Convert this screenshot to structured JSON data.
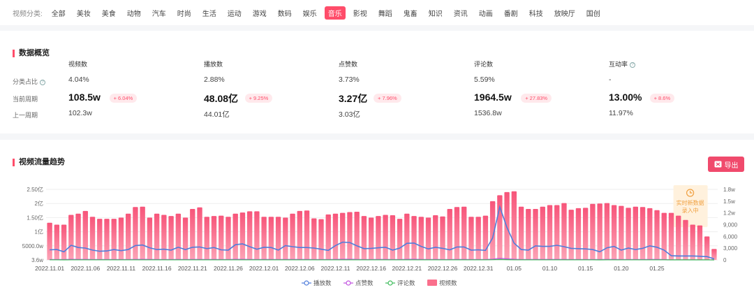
{
  "filter": {
    "label": "视频分类:",
    "categories": [
      "全部",
      "美妆",
      "美食",
      "动物",
      "汽车",
      "时尚",
      "生活",
      "运动",
      "游戏",
      "数码",
      "娱乐",
      "音乐",
      "影视",
      "舞蹈",
      "鬼畜",
      "知识",
      "资讯",
      "动画",
      "番剧",
      "科技",
      "放映厅",
      "国创"
    ],
    "active": "音乐"
  },
  "overview": {
    "title": "数据概览",
    "row_labels": {
      "share": "分类占比",
      "current": "当前周期",
      "previous": "上一周期"
    },
    "metrics": [
      {
        "name": "视频数",
        "share": "4.04%",
        "current": "108.5w",
        "change": "+ 6.04%",
        "previous": "102.3w"
      },
      {
        "name": "播放数",
        "share": "2.88%",
        "current": "48.08亿",
        "change": "+ 9.25%",
        "previous": "44.01亿"
      },
      {
        "name": "点赞数",
        "share": "3.73%",
        "current": "3.27亿",
        "change": "+ 7.96%",
        "previous": "3.03亿"
      },
      {
        "name": "评论数",
        "share": "5.59%",
        "current": "1964.5w",
        "change": "+ 27.83%",
        "previous": "1536.8w"
      },
      {
        "name": "互动率",
        "share": "-",
        "current": "13.00%",
        "change": "+ 8.6%",
        "previous": "11.97%"
      }
    ]
  },
  "trend": {
    "title": "视频流量趋势",
    "export_label": "导出",
    "realtime_note": [
      "实时新数据",
      "录入中"
    ]
  },
  "colors": {
    "accent": "#ff4d6a",
    "bar": "#fa6f8c",
    "play": "#4f7ddb",
    "like": "#c050e0",
    "comment": "#3dbb5a"
  },
  "chart_data": {
    "type": "bar",
    "x_tick_labels": [
      "2022.11.01",
      "2022.11.06",
      "2022.11.11",
      "2022.11.16",
      "2022.11.21",
      "2022.11.26",
      "2022.12.01",
      "2022.12.06",
      "2022.12.11",
      "2022.12.16",
      "2022.12.21",
      "2022.12.26",
      "2022.12.31",
      "01.05",
      "01.10",
      "01.15",
      "01.20",
      "01.25"
    ],
    "y_left_ticks": [
      "2.50亿",
      "2亿",
      "1.50亿",
      "1亿",
      "5000.0w",
      "3.6w"
    ],
    "y_right_ticks": [
      "1.8w",
      "1.5w",
      "1.2w",
      "9,000",
      "6,000",
      "3,000",
      "0"
    ],
    "y_left_max": 250000000,
    "y_right_max": 18000,
    "legend": [
      "播放数",
      "点赞数",
      "评论数",
      "视频数"
    ],
    "series": [
      {
        "name": "视频数",
        "axis": "right",
        "values": [
          9500,
          9000,
          9000,
          11500,
          11800,
          12500,
          11000,
          10500,
          10500,
          10500,
          10800,
          11800,
          13500,
          13600,
          10800,
          11800,
          11500,
          11200,
          11800,
          10800,
          13000,
          13400,
          11000,
          11200,
          11300,
          11000,
          11800,
          12100,
          12400,
          12400,
          11000,
          11000,
          11000,
          10800,
          11800,
          12500,
          12600,
          10600,
          10400,
          11600,
          11800,
          12000,
          12200,
          12300,
          11200,
          10800,
          11200,
          11500,
          11400,
          10500,
          11800,
          11200,
          11000,
          10800,
          11400,
          11100,
          13000,
          13500,
          13600,
          11000,
          11000,
          11300,
          15000,
          16500,
          17300,
          17500,
          13600,
          13000,
          13000,
          13600,
          14000,
          14000,
          14500,
          12800,
          13200,
          13300,
          14300,
          14400,
          14500,
          14000,
          13800,
          13300,
          13600,
          13500,
          13200,
          12700,
          12000,
          12000,
          11300,
          10200,
          9000,
          8800,
          6000,
          2800
        ]
      },
      {
        "name": "播放数",
        "axis": "left",
        "values": [
          36000000,
          37000000,
          29000000,
          52000000,
          44000000,
          42000000,
          35000000,
          31000000,
          32000000,
          37000000,
          33000000,
          37000000,
          51000000,
          53000000,
          43000000,
          37000000,
          38000000,
          35000000,
          45000000,
          37000000,
          45000000,
          46000000,
          40000000,
          44000000,
          36000000,
          35000000,
          54000000,
          57000000,
          47000000,
          38000000,
          45000000,
          44000000,
          35000000,
          51000000,
          47000000,
          44000000,
          44000000,
          42000000,
          38000000,
          34000000,
          51000000,
          63000000,
          62000000,
          50000000,
          40000000,
          41000000,
          43000000,
          45000000,
          35000000,
          42000000,
          59000000,
          60000000,
          48000000,
          39000000,
          45000000,
          41000000,
          36000000,
          46000000,
          46000000,
          35000000,
          36000000,
          34000000,
          78000000,
          188000000,
          115000000,
          60000000,
          37000000,
          35000000,
          50000000,
          48000000,
          48000000,
          52000000,
          47000000,
          41000000,
          40000000,
          39000000,
          37000000,
          29000000,
          43000000,
          48000000,
          35000000,
          42000000,
          37000000,
          41000000,
          50000000,
          45000000,
          35000000,
          15000000,
          14000000,
          14000000,
          14000000,
          13000000,
          12000000,
          4000000
        ]
      },
      {
        "name": "点赞数",
        "axis": "left",
        "values": [
          1600000,
          1600000,
          1400000,
          2200000,
          2000000,
          1900000,
          1700000,
          1500000,
          1500000,
          1700000,
          1600000,
          1700000,
          2100000,
          2200000,
          1900000,
          1700000,
          1700000,
          1600000,
          1900000,
          1700000,
          1900000,
          2000000,
          1800000,
          1900000,
          1700000,
          1600000,
          2200000,
          2300000,
          2000000,
          1700000,
          1900000,
          1900000,
          1600000,
          2100000,
          2000000,
          1900000,
          1900000,
          1800000,
          1700000,
          1600000,
          2100000,
          2500000,
          2400000,
          2100000,
          1800000,
          1800000,
          1900000,
          1900000,
          1600000,
          1800000,
          2300000,
          2400000,
          2000000,
          1700000,
          1900000,
          1800000,
          1700000,
          2000000,
          2000000,
          1600000,
          1700000,
          1600000,
          3000000,
          6000000,
          4000000,
          2400000,
          1700000,
          1600000,
          2100000,
          2000000,
          2000000,
          2100000,
          2000000,
          1800000,
          1800000,
          1700000,
          1700000,
          1400000,
          1900000,
          2000000,
          1600000,
          1800000,
          1700000,
          1800000,
          2100000,
          1900000,
          1600000,
          800000,
          700000,
          700000,
          700000,
          700000,
          600000,
          300000
        ]
      },
      {
        "name": "评论数",
        "axis": "left",
        "values": [
          400000,
          400000,
          350000,
          500000,
          460000,
          450000,
          420000,
          380000,
          380000,
          420000,
          400000,
          420000,
          500000,
          520000,
          460000,
          420000,
          420000,
          400000,
          460000,
          420000,
          460000,
          480000,
          440000,
          460000,
          420000,
          400000,
          520000,
          540000,
          480000,
          420000,
          460000,
          460000,
          400000,
          500000,
          480000,
          460000,
          460000,
          440000,
          420000,
          400000,
          500000,
          600000,
          580000,
          500000,
          440000,
          440000,
          460000,
          460000,
          400000,
          440000,
          560000,
          580000,
          480000,
          420000,
          460000,
          440000,
          420000,
          480000,
          480000,
          400000,
          420000,
          400000,
          700000,
          1400000,
          900000,
          580000,
          420000,
          400000,
          500000,
          480000,
          480000,
          500000,
          480000,
          440000,
          440000,
          420000,
          420000,
          350000,
          460000,
          480000,
          400000,
          440000,
          420000,
          440000,
          500000,
          460000,
          400000,
          200000,
          180000,
          180000,
          180000,
          170000,
          150000,
          80000
        ]
      }
    ]
  }
}
